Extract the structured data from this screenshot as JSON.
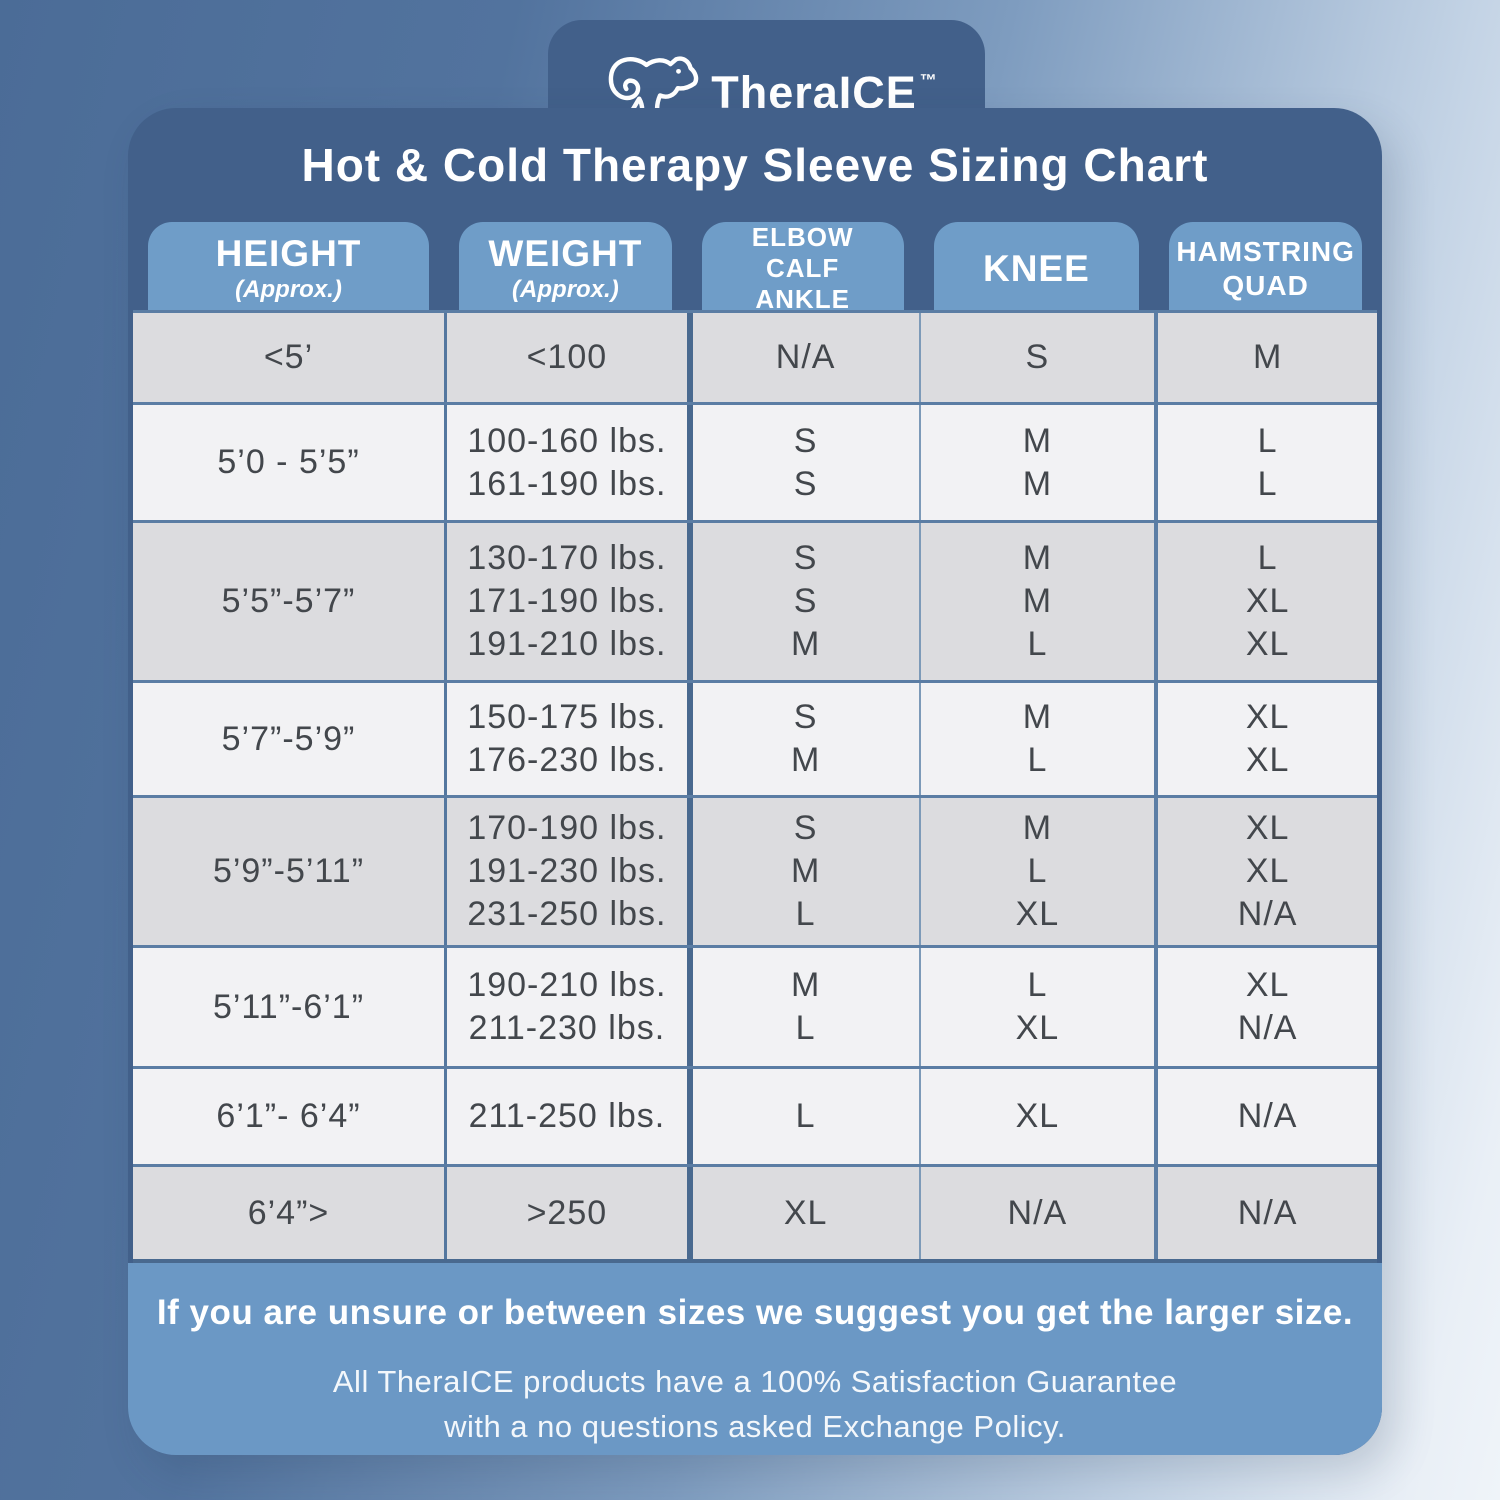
{
  "brand": {
    "name": "TheraICE",
    "tm": "™"
  },
  "title": "Hot & Cold Therapy Sleeve Sizing Chart",
  "table": {
    "columns": [
      {
        "lines": [
          "HEIGHT"
        ],
        "sub": "(Approx.)"
      },
      {
        "lines": [
          "WEIGHT"
        ],
        "sub": "(Approx.)"
      },
      {
        "lines": [
          "ELBOW",
          "CALF",
          "ANKLE"
        ]
      },
      {
        "lines": [
          "KNEE"
        ]
      },
      {
        "lines": [
          "HAMSTRING",
          "QUAD"
        ]
      }
    ],
    "rows": [
      {
        "shade": "gray",
        "cells": [
          [
            "<5’"
          ],
          [
            "<100"
          ],
          [
            "N/A"
          ],
          [
            "S"
          ],
          [
            "M"
          ]
        ]
      },
      {
        "shade": "light",
        "cells": [
          [
            "5’0 - 5’5”"
          ],
          [
            "100-160 lbs.",
            "161-190 lbs."
          ],
          [
            "S",
            "S"
          ],
          [
            "M",
            "M"
          ],
          [
            "L",
            "L"
          ]
        ]
      },
      {
        "shade": "gray",
        "cells": [
          [
            "5’5”-5’7”"
          ],
          [
            "130-170 lbs.",
            "171-190 lbs.",
            "191-210 lbs."
          ],
          [
            "S",
            "S",
            "M"
          ],
          [
            "M",
            "M",
            "L"
          ],
          [
            "L",
            "XL",
            "XL"
          ]
        ]
      },
      {
        "shade": "light",
        "cells": [
          [
            "5’7”-5’9”"
          ],
          [
            "150-175 lbs.",
            "176-230 lbs."
          ],
          [
            "S",
            "M"
          ],
          [
            "M",
            "L"
          ],
          [
            "XL",
            "XL"
          ]
        ]
      },
      {
        "shade": "gray",
        "cells": [
          [
            "5’9”-5’11”"
          ],
          [
            "170-190 lbs.",
            "191-230 lbs.",
            "231-250 lbs."
          ],
          [
            "S",
            "M",
            "L"
          ],
          [
            "M",
            "L",
            "XL"
          ],
          [
            "XL",
            "XL",
            "N/A"
          ]
        ]
      },
      {
        "shade": "light",
        "cells": [
          [
            "5’11”-6’1”"
          ],
          [
            "190-210 lbs.",
            "211-230 lbs."
          ],
          [
            "M",
            "L"
          ],
          [
            "L",
            "XL"
          ],
          [
            "XL",
            "N/A"
          ]
        ]
      },
      {
        "shade": "light",
        "cells": [
          [
            "6’1”- 6’4”"
          ],
          [
            "211-250 lbs."
          ],
          [
            "L"
          ],
          [
            "XL"
          ],
          [
            "N/A"
          ]
        ]
      },
      {
        "shade": "gray",
        "cells": [
          [
            "6’4”>"
          ],
          [
            ">250"
          ],
          [
            "XL"
          ],
          [
            "N/A"
          ],
          [
            "N/A"
          ]
        ]
      }
    ]
  },
  "footer": {
    "bold_note": "If you are unsure or between sizes we suggest you get the larger size.",
    "guarantee_line1": "All TheraICE products have a 100% Satisfaction Guarantee",
    "guarantee_line2": "with a no questions asked Exchange Policy."
  },
  "colors": {
    "background_left": "#4b6c97",
    "background_right": "#eff4f9",
    "panel_blue": "#42608a",
    "header_tab_blue": "#6f9dc8",
    "footer_blue": "#6b98c5",
    "row_gray": "#dcdcdf",
    "row_light": "#f2f2f4",
    "divider_blue": "#54779f",
    "table_text": "#43474c",
    "text_on_blue": "#ffffff"
  }
}
